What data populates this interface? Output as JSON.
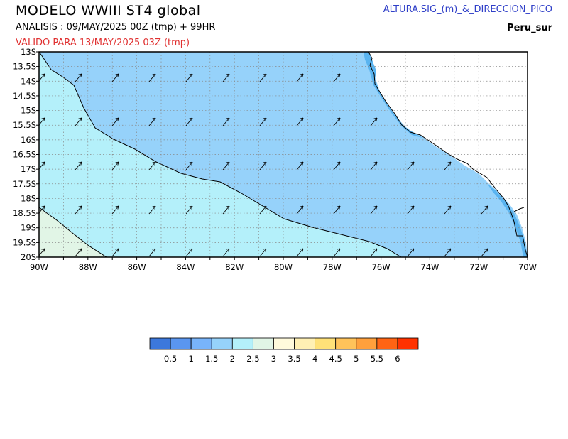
{
  "header": {
    "title": "MODELO  WWIII  ST4  global",
    "analysis": "ANALISIS : 09/MAY/2025 00Z  (tmp) + 99HR",
    "valid": "VALIDO PARA  13/MAY/2025 03Z  (tmp)",
    "field": "ALTURA.SIG_(m)_&_DIRECCION_PICO",
    "region": "Peru_sur"
  },
  "map": {
    "lon_range": [
      -90,
      -70
    ],
    "lat_range": [
      -20,
      -13
    ],
    "lon_ticks": [
      "90W",
      "88W",
      "86W",
      "84W",
      "82W",
      "80W",
      "78W",
      "76W",
      "74W",
      "72W",
      "70W"
    ],
    "lat_ticks": [
      "13S",
      "13.5S",
      "14S",
      "14.5S",
      "15S",
      "15.5S",
      "16S",
      "16.5S",
      "17S",
      "17.5S",
      "18S",
      "18.5S",
      "19S",
      "19.5S",
      "20S"
    ],
    "grid": true,
    "fill_colors": {
      "land": "#ffffff",
      "height_1_5_2": "#96d2fa",
      "height_2_2_5": "#b4f0fa",
      "height_2_5_3": "#e1f5e6",
      "coast_band": "#5ab4f0"
    },
    "wave_direction": "NE",
    "arrow_color": "#000000"
  },
  "colorbar": {
    "labels": [
      "0.5",
      "1",
      "1.5",
      "2",
      "2.5",
      "3",
      "3.5",
      "4",
      "4.5",
      "5",
      "5.5",
      "6"
    ],
    "colors": [
      "#3c78dc",
      "#5a96f0",
      "#78b4fa",
      "#96d2fa",
      "#b4f0fa",
      "#e1f5e6",
      "#fffadc",
      "#fff0b4",
      "#ffe178",
      "#ffc35a",
      "#ffa03c",
      "#ff6414",
      "#ff3200"
    ]
  }
}
